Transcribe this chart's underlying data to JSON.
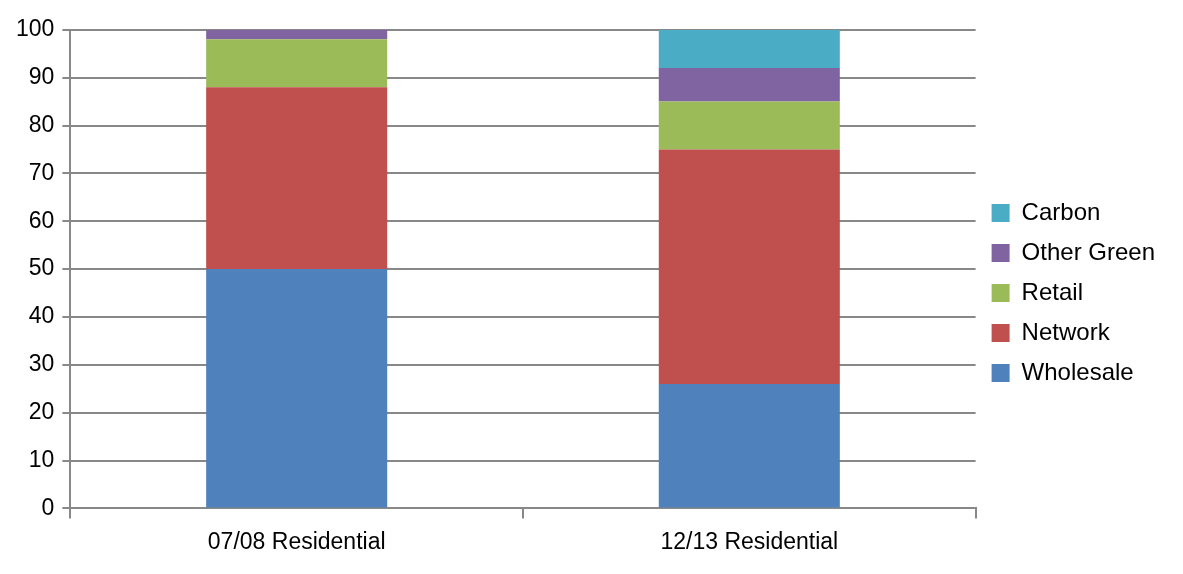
{
  "chart_data": {
    "type": "bar",
    "stacked": true,
    "categories": [
      "07/08 Residential",
      "12/13 Residential"
    ],
    "series": [
      {
        "name": "Wholesale",
        "color": "#4f81bd",
        "values": [
          50,
          26
        ]
      },
      {
        "name": "Network",
        "color": "#c0504d",
        "values": [
          38,
          49
        ]
      },
      {
        "name": "Retail",
        "color": "#9bbb59",
        "values": [
          10,
          10
        ]
      },
      {
        "name": "Other Green",
        "color": "#8064a2",
        "values": [
          2,
          7
        ]
      },
      {
        "name": "Carbon",
        "color": "#4bacc6",
        "values": [
          0,
          8
        ]
      }
    ],
    "ylim": [
      0,
      100
    ],
    "yticks": [
      0,
      10,
      20,
      30,
      40,
      50,
      60,
      70,
      80,
      90,
      100
    ],
    "grid": "y",
    "legend": "right"
  }
}
